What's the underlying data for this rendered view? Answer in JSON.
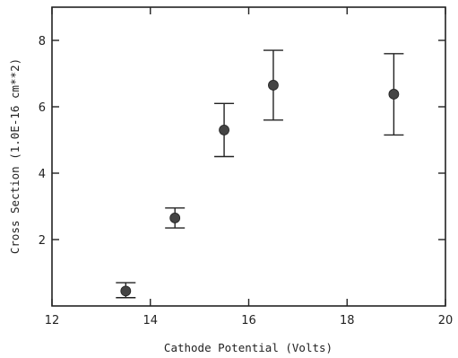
{
  "chart_data": {
    "type": "scatter",
    "title": "",
    "xlabel": "Cathode Potential (Volts)",
    "ylabel": "Cross Section (1.0E-16 cm**2)",
    "xlim": [
      12,
      20
    ],
    "ylim": [
      0,
      9
    ],
    "xticks": [
      12,
      14,
      16,
      18,
      20
    ],
    "yticks": [
      2,
      4,
      6,
      8
    ],
    "grid": false,
    "legend": "none",
    "colors": {
      "axis": "#222222",
      "marker": "#444444"
    },
    "series": [
      {
        "points": [
          {
            "x": 13.5,
            "y": 0.45,
            "err_low": 0.25,
            "err_high": 0.7
          },
          {
            "x": 14.5,
            "y": 2.65,
            "err_low": 2.35,
            "err_high": 2.95
          },
          {
            "x": 15.5,
            "y": 5.3,
            "err_low": 4.5,
            "err_high": 6.1
          },
          {
            "x": 16.5,
            "y": 6.65,
            "err_low": 5.6,
            "err_high": 7.7
          },
          {
            "x": 18.95,
            "y": 6.38,
            "err_low": 5.15,
            "err_high": 7.6
          }
        ]
      }
    ]
  }
}
